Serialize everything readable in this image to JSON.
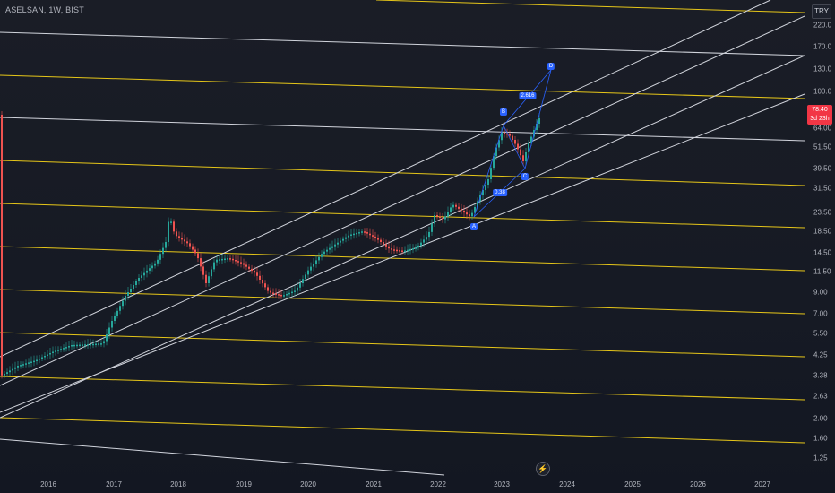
{
  "header": {
    "symbol": "ASELSAN, 1W, BIST"
  },
  "price_scale": {
    "currency": "TRY",
    "ticks": [
      "220.0",
      "170.0",
      "130.0",
      "100.0",
      "64.00",
      "51.50",
      "39.50",
      "31.50",
      "23.50",
      "18.50",
      "14.50",
      "11.50",
      "9.00",
      "7.00",
      "5.50",
      "4.25",
      "3.38",
      "2.63",
      "2.00",
      "1.60",
      "1.25"
    ],
    "last_price": "78.40",
    "countdown": "3d 23h"
  },
  "time_axis": {
    "ticks": [
      "2016",
      "2017",
      "2018",
      "2019",
      "2020",
      "2021",
      "2022",
      "2023",
      "2024",
      "2025",
      "2026",
      "2027"
    ]
  },
  "wave_labels": {
    "a": "A",
    "b": "B",
    "c": "C",
    "d": "D",
    "ratio_bc": "0.38",
    "ratio_cd": "2.616"
  },
  "colors": {
    "background": "#131722",
    "trend_line": "#d1d4dc",
    "horizontal_level": "#e6c619",
    "candle_up": "#26a69a",
    "candle_down": "#ef5350",
    "price_badge": "#f23645",
    "pattern": "#2962ff"
  },
  "icons": {
    "replay": "lightning-icon"
  }
}
